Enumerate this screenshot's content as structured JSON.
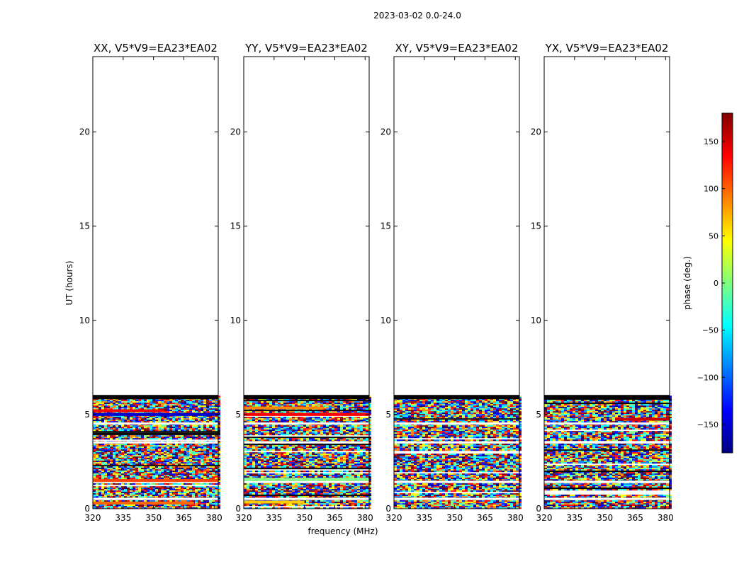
{
  "figure": {
    "suptitle": "2023-03-02 0.0-24.0"
  },
  "chart_data": {
    "type": "heatmap",
    "title": "2023-03-02 0.0-24.0",
    "xlabel": "frequency (MHz)",
    "ylabel": "UT (hours)",
    "xlim": [
      320,
      382
    ],
    "ylim": [
      0,
      24
    ],
    "x_ticks": [
      320,
      335,
      350,
      365,
      380
    ],
    "y_ticks": [
      0,
      5,
      10,
      15,
      20
    ],
    "data_extent_hours": [
      0,
      6
    ],
    "colorbar": {
      "label": "phase (deg.)",
      "range": [
        -180,
        180
      ],
      "ticks": [
        150,
        100,
        50,
        0,
        -50,
        -100,
        -150
      ],
      "tick_labels": [
        "150",
        "100",
        "50",
        "0",
        "−50",
        "−100",
        "−150"
      ],
      "colormap": [
        "#00007f",
        "#0000ff",
        "#007fff",
        "#00ffff",
        "#7fff7f",
        "#ffff00",
        "#ff7f00",
        "#ff0000",
        "#7f0000"
      ]
    },
    "panels": [
      {
        "title": "XX, V5*V9=EA23*EA02",
        "stripes": [
          {
            "y": 5.2,
            "color": "#ff0000",
            "x0": 320,
            "x1": 355
          },
          {
            "y": 5.0,
            "color": "#0000cc",
            "x0": 320,
            "x1": 382
          },
          {
            "y": 1.5,
            "color": "#ff4400",
            "x0": 320,
            "x1": 382
          },
          {
            "y": 0.3,
            "color": "#ff6600",
            "x0": 320,
            "x1": 370
          }
        ]
      },
      {
        "title": "YY, V5*V9=EA23*EA02",
        "stripes": [
          {
            "y": 5.35,
            "color": "#ff8800",
            "x0": 320,
            "x1": 360
          },
          {
            "y": 5.0,
            "color": "#ff0000",
            "x0": 320,
            "x1": 382
          },
          {
            "y": 1.55,
            "color": "#88ff88",
            "x0": 320,
            "x1": 382
          },
          {
            "y": 0.35,
            "color": "#ffcc00",
            "x0": 320,
            "x1": 350
          }
        ]
      },
      {
        "title": "XY, V5*V9=EA23*EA02",
        "stripes": []
      },
      {
        "title": "YX, V5*V9=EA23*EA02",
        "stripes": [
          {
            "y": 4.75,
            "color": "#cc0000",
            "x0": 355,
            "x1": 382
          }
        ]
      }
    ]
  }
}
